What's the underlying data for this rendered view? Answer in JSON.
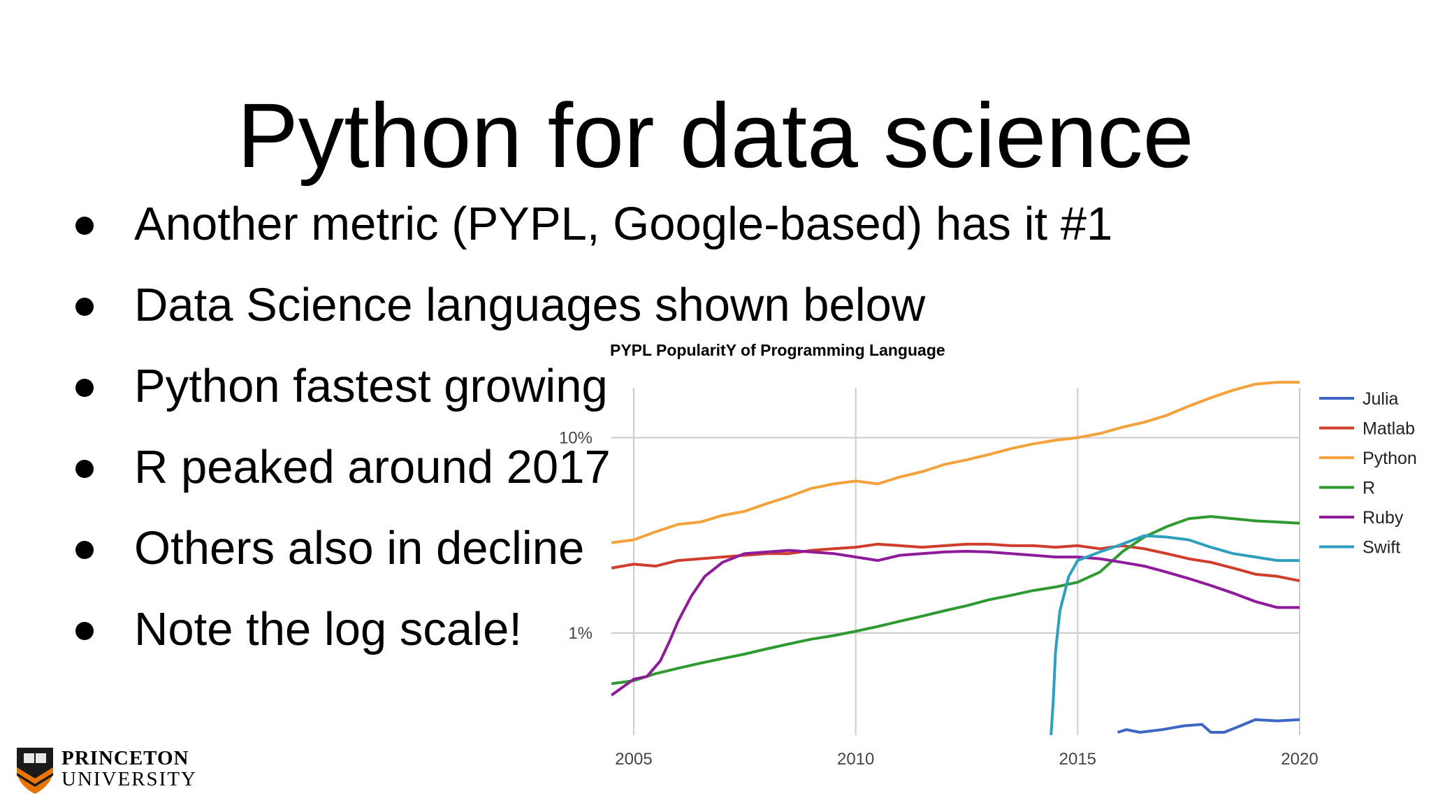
{
  "slide": {
    "title": "Python for data science",
    "bullets": [
      "Another metric (PYPL, Google-based) has it #1",
      "Data Science languages shown below",
      "Python fastest growing",
      "R peaked around 2017",
      "Others also in decline",
      "Note the log scale!"
    ],
    "logo": {
      "line1": "PRINCETON",
      "line2": "UNIVERSITY"
    }
  },
  "colors": {
    "Julia": "#3d66c5",
    "Matlab": "#cf3e2c",
    "Python": "#f4a23b",
    "R": "#2f9a32",
    "Ruby": "#8e1b99",
    "Swift": "#2e9fbf",
    "grid": "#cccccc"
  },
  "chart_data": {
    "type": "line",
    "title": "PYPL PopularitY of Programming Language",
    "xlabel": "",
    "ylabel": "",
    "y_scale": "log",
    "xlim": [
      2005,
      2020
    ],
    "ylim": [
      0.3,
      18
    ],
    "x_ticks": [
      "2005",
      "2010",
      "2015",
      "2020"
    ],
    "y_ticks": [
      {
        "value": 1,
        "label": "1%"
      },
      {
        "value": 10,
        "label": "10%"
      }
    ],
    "grid": true,
    "legend_position": "right",
    "series": [
      {
        "name": "Julia",
        "x": [
          2015.9,
          2016.1,
          2016.4,
          2016.9,
          2017.4,
          2017.8,
          2018.0,
          2018.3,
          2018.6,
          2019.0,
          2019.5,
          2020.0
        ],
        "y": [
          0.31,
          0.32,
          0.31,
          0.32,
          0.335,
          0.34,
          0.31,
          0.31,
          0.33,
          0.36,
          0.355,
          0.36
        ]
      },
      {
        "name": "Matlab",
        "x": [
          2004.5,
          2005.0,
          2005.5,
          2006.0,
          2006.5,
          2007.0,
          2007.5,
          2008.0,
          2008.5,
          2009.0,
          2009.5,
          2010.0,
          2010.5,
          2011.0,
          2011.5,
          2012.0,
          2012.5,
          2013.0,
          2013.5,
          2014.0,
          2014.5,
          2015.0,
          2015.5,
          2016.0,
          2016.5,
          2017.0,
          2017.5,
          2018.0,
          2018.5,
          2019.0,
          2019.5,
          2020.0
        ],
        "y": [
          2.15,
          2.25,
          2.2,
          2.35,
          2.4,
          2.45,
          2.5,
          2.55,
          2.55,
          2.65,
          2.7,
          2.75,
          2.85,
          2.8,
          2.75,
          2.8,
          2.85,
          2.85,
          2.8,
          2.8,
          2.75,
          2.8,
          2.7,
          2.8,
          2.7,
          2.55,
          2.4,
          2.3,
          2.15,
          2.0,
          1.95,
          1.85
        ]
      },
      {
        "name": "Python",
        "x": [
          2004.5,
          2005.0,
          2005.5,
          2006.0,
          2006.5,
          2007.0,
          2007.5,
          2008.0,
          2008.5,
          2009.0,
          2009.5,
          2010.0,
          2010.5,
          2011.0,
          2011.5,
          2012.0,
          2012.5,
          2013.0,
          2013.5,
          2014.0,
          2014.5,
          2015.0,
          2015.5,
          2016.0,
          2016.5,
          2017.0,
          2017.5,
          2018.0,
          2018.5,
          2019.0,
          2019.5,
          2020.0
        ],
        "y": [
          2.9,
          3.0,
          3.3,
          3.6,
          3.7,
          4.0,
          4.2,
          4.6,
          5.0,
          5.5,
          5.8,
          6.0,
          5.8,
          6.3,
          6.7,
          7.3,
          7.7,
          8.2,
          8.8,
          9.3,
          9.7,
          10.0,
          10.5,
          11.3,
          12.0,
          13.0,
          14.5,
          16.0,
          17.5,
          18.8,
          19.8,
          20.6
        ]
      },
      {
        "name": "R",
        "x": [
          2004.5,
          2005.0,
          2005.5,
          2006.0,
          2006.5,
          2007.0,
          2007.5,
          2008.0,
          2008.5,
          2009.0,
          2009.5,
          2010.0,
          2010.5,
          2011.0,
          2011.5,
          2012.0,
          2012.5,
          2013.0,
          2013.5,
          2014.0,
          2014.5,
          2015.0,
          2015.5,
          2016.0,
          2016.5,
          2017.0,
          2017.5,
          2018.0,
          2018.5,
          2019.0,
          2019.5,
          2020.0
        ],
        "y": [
          0.55,
          0.57,
          0.62,
          0.66,
          0.7,
          0.74,
          0.78,
          0.83,
          0.88,
          0.93,
          0.97,
          1.02,
          1.08,
          1.15,
          1.22,
          1.3,
          1.38,
          1.48,
          1.56,
          1.65,
          1.72,
          1.82,
          2.05,
          2.6,
          3.1,
          3.5,
          3.85,
          3.95,
          3.85,
          3.75,
          3.7,
          3.65
        ]
      },
      {
        "name": "Ruby",
        "x": [
          2004.5,
          2005.0,
          2005.3,
          2005.6,
          2005.8,
          2006.0,
          2006.3,
          2006.6,
          2007.0,
          2007.5,
          2008.0,
          2008.5,
          2009.0,
          2009.5,
          2010.0,
          2010.5,
          2011.0,
          2011.5,
          2012.0,
          2012.5,
          2013.0,
          2013.5,
          2014.0,
          2014.5,
          2015.0,
          2015.5,
          2016.0,
          2016.5,
          2017.0,
          2017.5,
          2018.0,
          2018.5,
          2019.0,
          2019.5,
          2020.0
        ],
        "y": [
          0.48,
          0.58,
          0.6,
          0.72,
          0.9,
          1.15,
          1.55,
          1.95,
          2.3,
          2.55,
          2.6,
          2.65,
          2.6,
          2.55,
          2.45,
          2.35,
          2.5,
          2.55,
          2.6,
          2.62,
          2.6,
          2.55,
          2.5,
          2.45,
          2.45,
          2.4,
          2.3,
          2.2,
          2.05,
          1.9,
          1.75,
          1.6,
          1.45,
          1.35,
          1.35
        ]
      },
      {
        "name": "Swift",
        "x": [
          2014.4,
          2014.45,
          2014.5,
          2014.6,
          2014.8,
          2015.0,
          2015.5,
          2016.0,
          2016.5,
          2017.0,
          2017.5,
          2018.0,
          2018.5,
          2019.0,
          2019.5,
          2020.0
        ],
        "y": [
          0.3,
          0.45,
          0.8,
          1.3,
          1.95,
          2.35,
          2.6,
          2.85,
          3.15,
          3.1,
          3.0,
          2.75,
          2.55,
          2.45,
          2.35,
          2.35
        ]
      }
    ]
  }
}
